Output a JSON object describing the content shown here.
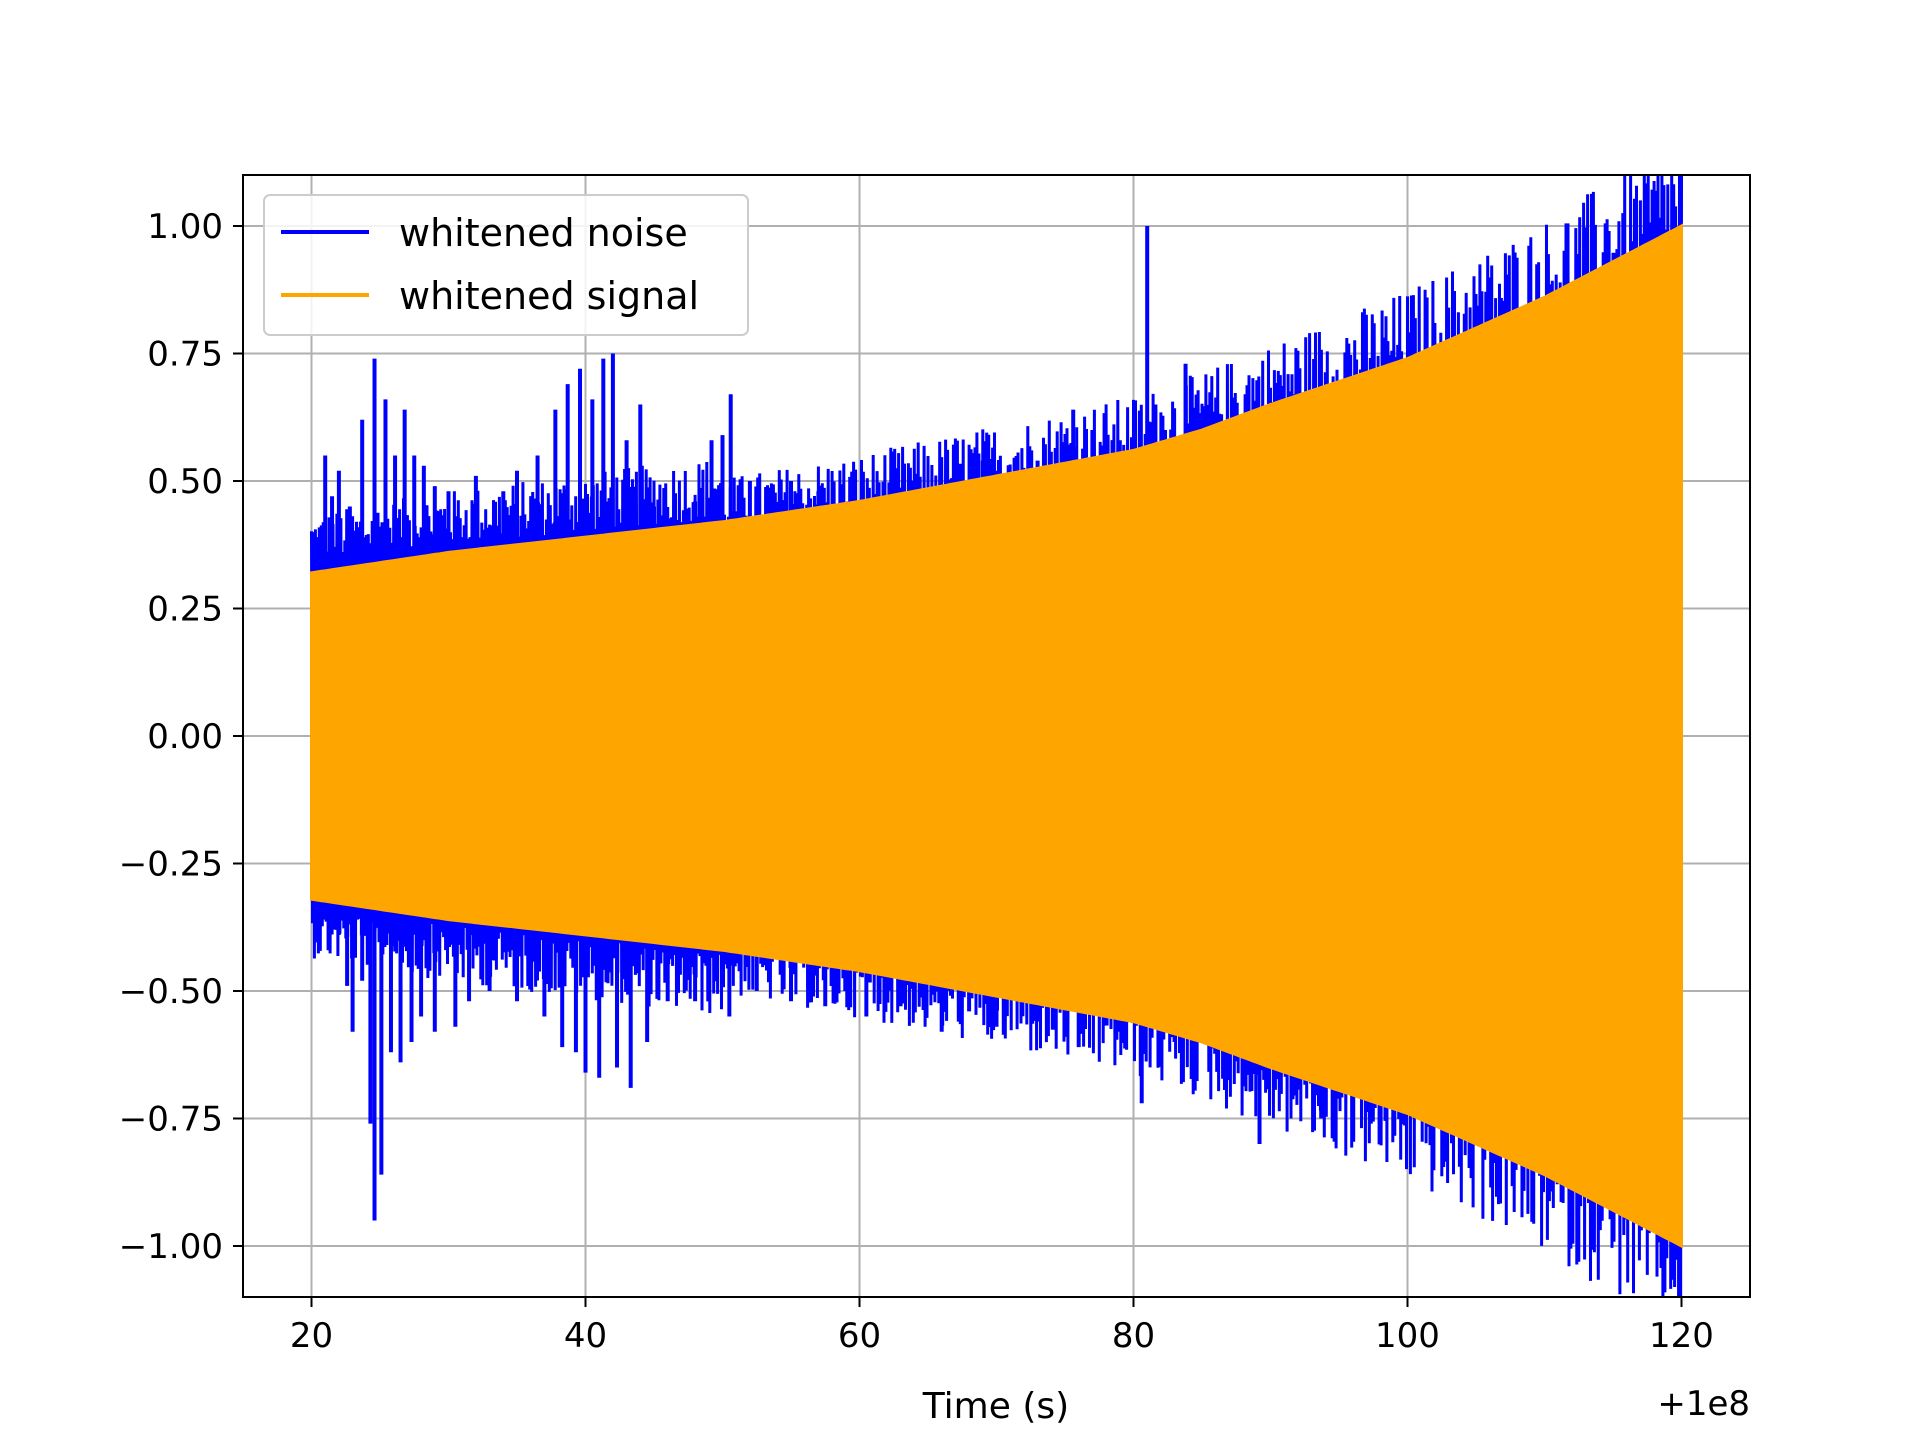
{
  "chart_data": {
    "type": "line",
    "title": "",
    "xlabel": "Time (s)",
    "ylabel": "",
    "x_offset_label": "+1e8",
    "xlim": [
      15,
      125
    ],
    "ylim": [
      -1.1,
      1.1
    ],
    "xticks": [
      20,
      40,
      60,
      80,
      100,
      120
    ],
    "yticks": [
      1.0,
      0.75,
      0.5,
      0.25,
      0.0,
      -0.25,
      -0.5,
      -0.75,
      -1.0
    ],
    "xtick_labels": [
      "20",
      "40",
      "60",
      "80",
      "100",
      "120"
    ],
    "ytick_labels": [
      "1.00",
      "0.75",
      "0.50",
      "0.25",
      "0.00",
      "−0.25",
      "−0.50",
      "−0.75",
      "−1.00"
    ],
    "grid": true,
    "legend_position": "top-left",
    "series": [
      {
        "name": "whitened noise",
        "color": "#0000ff",
        "x_range": [
          20,
          120
        ],
        "spikes": [
          {
            "x": 20.5,
            "y": 0.39
          },
          {
            "x": 21.0,
            "y": 0.55
          },
          {
            "x": 21.5,
            "y": 0.47
          },
          {
            "x": 22.0,
            "y": 0.52
          },
          {
            "x": 22.8,
            "y": 0.45
          },
          {
            "x": 23.7,
            "y": 0.62
          },
          {
            "x": 24.6,
            "y": 0.74
          },
          {
            "x": 25.4,
            "y": 0.66
          },
          {
            "x": 26.1,
            "y": 0.55
          },
          {
            "x": 26.8,
            "y": 0.64
          },
          {
            "x": 27.5,
            "y": 0.55
          },
          {
            "x": 28.2,
            "y": 0.53
          },
          {
            "x": 29.0,
            "y": 0.49
          },
          {
            "x": 30.0,
            "y": 0.48
          },
          {
            "x": 32.0,
            "y": 0.51
          },
          {
            "x": 34.0,
            "y": 0.48
          },
          {
            "x": 35.0,
            "y": 0.52
          },
          {
            "x": 36.5,
            "y": 0.55
          },
          {
            "x": 37.8,
            "y": 0.64
          },
          {
            "x": 38.7,
            "y": 0.69
          },
          {
            "x": 39.6,
            "y": 0.72
          },
          {
            "x": 40.5,
            "y": 0.66
          },
          {
            "x": 41.3,
            "y": 0.74
          },
          {
            "x": 42.0,
            "y": 0.75
          },
          {
            "x": 43.0,
            "y": 0.58
          },
          {
            "x": 44.0,
            "y": 0.65
          },
          {
            "x": 45.0,
            "y": 0.45
          },
          {
            "x": 46.5,
            "y": 0.43
          },
          {
            "x": 48.0,
            "y": 0.46
          },
          {
            "x": 49.2,
            "y": 0.58
          },
          {
            "x": 50.0,
            "y": 0.59
          },
          {
            "x": 50.6,
            "y": 0.67
          },
          {
            "x": 52.0,
            "y": 0.5
          },
          {
            "x": 55.0,
            "y": 0.5
          },
          {
            "x": 57.0,
            "y": 0.48
          },
          {
            "x": 60.0,
            "y": 0.45
          },
          {
            "x": 63.0,
            "y": 0.45
          },
          {
            "x": 66.0,
            "y": 0.49
          },
          {
            "x": 69.0,
            "y": 0.54
          },
          {
            "x": 70.0,
            "y": 0.52
          },
          {
            "x": 73.0,
            "y": 0.54
          },
          {
            "x": 75.6,
            "y": 0.64
          },
          {
            "x": 77.0,
            "y": 0.6
          },
          {
            "x": 79.0,
            "y": 0.58
          },
          {
            "x": 81.0,
            "y": 1.0
          },
          {
            "x": 81.6,
            "y": 0.65
          },
          {
            "x": 82.3,
            "y": 0.6
          },
          {
            "x": 83.8,
            "y": 0.73
          }
        ],
        "dips": [
          {
            "x": 20.4,
            "y": -0.35
          },
          {
            "x": 21.0,
            "y": -0.36
          },
          {
            "x": 22.0,
            "y": -0.39
          },
          {
            "x": 22.6,
            "y": -0.49
          },
          {
            "x": 23.0,
            "y": -0.58
          },
          {
            "x": 23.7,
            "y": -0.48
          },
          {
            "x": 24.3,
            "y": -0.76
          },
          {
            "x": 24.6,
            "y": -0.95
          },
          {
            "x": 25.1,
            "y": -0.86
          },
          {
            "x": 25.8,
            "y": -0.62
          },
          {
            "x": 26.5,
            "y": -0.64
          },
          {
            "x": 27.3,
            "y": -0.6
          },
          {
            "x": 28.0,
            "y": -0.55
          },
          {
            "x": 29.0,
            "y": -0.58
          },
          {
            "x": 30.5,
            "y": -0.57
          },
          {
            "x": 31.5,
            "y": -0.52
          },
          {
            "x": 33.0,
            "y": -0.5
          },
          {
            "x": 35.0,
            "y": -0.52
          },
          {
            "x": 37.0,
            "y": -0.55
          },
          {
            "x": 38.3,
            "y": -0.61
          },
          {
            "x": 39.3,
            "y": -0.62
          },
          {
            "x": 40.0,
            "y": -0.66
          },
          {
            "x": 41.0,
            "y": -0.67
          },
          {
            "x": 42.3,
            "y": -0.65
          },
          {
            "x": 43.3,
            "y": -0.69
          },
          {
            "x": 44.5,
            "y": -0.6
          },
          {
            "x": 46.0,
            "y": -0.52
          },
          {
            "x": 48.0,
            "y": -0.52
          },
          {
            "x": 50.5,
            "y": -0.55
          },
          {
            "x": 52.5,
            "y": -0.5
          },
          {
            "x": 55.0,
            "y": -0.52
          },
          {
            "x": 57.5,
            "y": -0.53
          },
          {
            "x": 60.5,
            "y": -0.55
          },
          {
            "x": 63.0,
            "y": -0.53
          },
          {
            "x": 66.0,
            "y": -0.58
          },
          {
            "x": 68.0,
            "y": -0.54
          },
          {
            "x": 70.0,
            "y": -0.57
          },
          {
            "x": 73.0,
            "y": -0.56
          },
          {
            "x": 76.0,
            "y": -0.61
          },
          {
            "x": 79.0,
            "y": -0.58
          },
          {
            "x": 80.6,
            "y": -0.72
          },
          {
            "x": 83.0,
            "y": -0.6
          },
          {
            "x": 86.0,
            "y": -0.62
          },
          {
            "x": 89.2,
            "y": -0.8
          },
          {
            "x": 93.7,
            "y": -0.75
          },
          {
            "x": 97.0,
            "y": -0.7
          }
        ]
      },
      {
        "name": "whitened signal",
        "color": "#ffa500",
        "x_range": [
          20,
          120
        ],
        "envelope": [
          {
            "x": 20,
            "y": 0.32
          },
          {
            "x": 30,
            "y": 0.36
          },
          {
            "x": 40,
            "y": 0.39
          },
          {
            "x": 50,
            "y": 0.42
          },
          {
            "x": 60,
            "y": 0.46
          },
          {
            "x": 70,
            "y": 0.51
          },
          {
            "x": 80,
            "y": 0.56
          },
          {
            "x": 85,
            "y": 0.6
          },
          {
            "x": 90,
            "y": 0.65
          },
          {
            "x": 100,
            "y": 0.74
          },
          {
            "x": 110,
            "y": 0.86
          },
          {
            "x": 120,
            "y": 1.0
          }
        ]
      }
    ]
  }
}
